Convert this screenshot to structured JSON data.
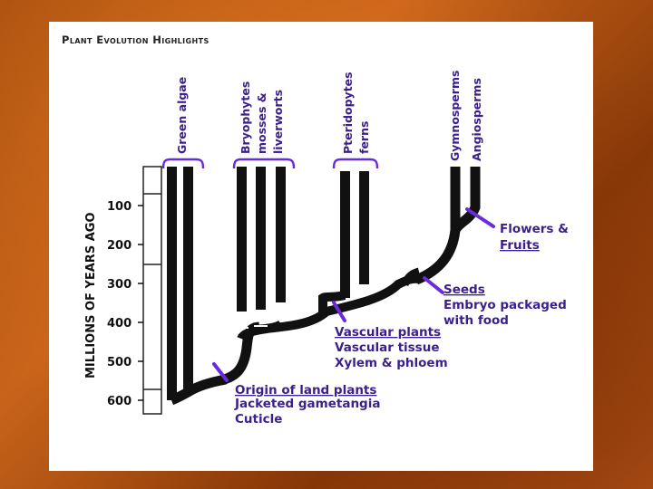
{
  "title": "Plant Evolution Highlights",
  "axis": {
    "label": "MILLIONS OF YEARS AGO",
    "ticks": [
      "100",
      "200",
      "300",
      "400",
      "500",
      "600"
    ]
  },
  "groups": [
    {
      "label": "Green algae"
    },
    {
      "label_lines": [
        "Bryophytes",
        "mosses &",
        "liverworts"
      ]
    },
    {
      "label_lines": [
        "Pteridopytes",
        "ferns"
      ]
    },
    {
      "label": "Gymnosperms"
    },
    {
      "label": "Angiosperms"
    }
  ],
  "events": [
    {
      "lines": [
        "Origin of land plants",
        "Jacketed gametangia",
        "Cuticle"
      ]
    },
    {
      "lines": [
        "Vascular plants",
        "Vascular tissue",
        "Xylem & phloem"
      ]
    },
    {
      "lines": [
        "Seeds",
        "Embryo packaged",
        "with food"
      ]
    },
    {
      "lines": [
        "Flowers &",
        "Fruits"
      ]
    }
  ],
  "colors": {
    "background": "#b4561a",
    "panel": "#ffffff",
    "branches": "#111111",
    "brackets_markers": "#6a2bd9",
    "label_text": "#3b1f8c"
  }
}
